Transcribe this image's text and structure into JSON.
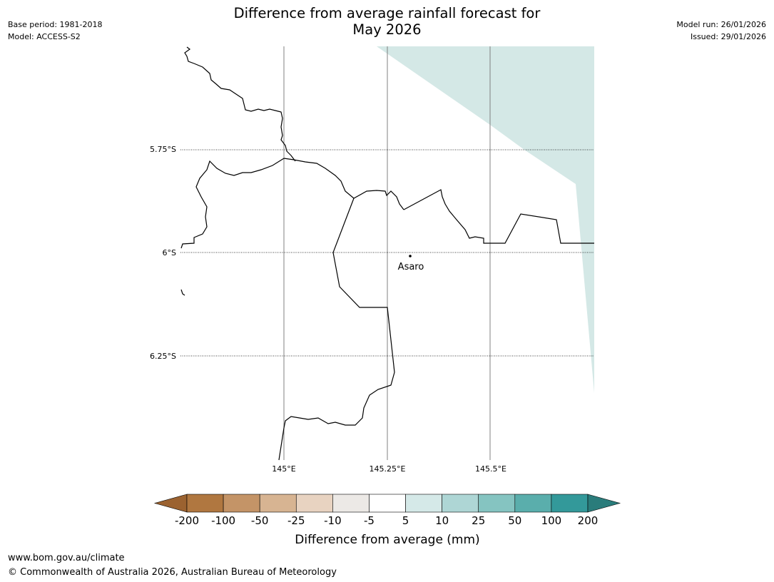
{
  "title_line1": "Difference from average rainfall forecast for",
  "title_line2": "May 2026",
  "meta_left": {
    "base_period": "Base period: 1981-2018",
    "model": "Model: ACCESS-S2"
  },
  "meta_right": {
    "model_run": "Model run: 26/01/2026",
    "issued": "Issued: 29/01/2026"
  },
  "map": {
    "lat_labels": [
      "5.75°S",
      "6°S",
      "6.25°S"
    ],
    "lon_labels": [
      "145°E",
      "145.25°E",
      "145.5°E"
    ],
    "place": {
      "name": "Asaro"
    },
    "colors": {
      "forecast_shading": "#d4e8e6",
      "border": "#000000",
      "gridline": "#808080"
    }
  },
  "colorbar": {
    "labels": [
      "-200",
      "-100",
      "-50",
      "-25",
      "-10",
      "-5",
      "5",
      "10",
      "25",
      "50",
      "100",
      "200"
    ],
    "colors": [
      "#9b6230",
      "#b07740",
      "#c49467",
      "#d7b492",
      "#e8d3c1",
      "#ece9e6",
      "#ffffff",
      "#d5e9e8",
      "#aed6d5",
      "#85c4c1",
      "#5aaeac",
      "#33999a",
      "#2a7c7b"
    ],
    "label": "Difference from average (mm)"
  },
  "footer": {
    "url": "www.bom.gov.au/climate",
    "copyright": "© Commonwealth of Australia 2026, Australian Bureau of Meteorology"
  }
}
